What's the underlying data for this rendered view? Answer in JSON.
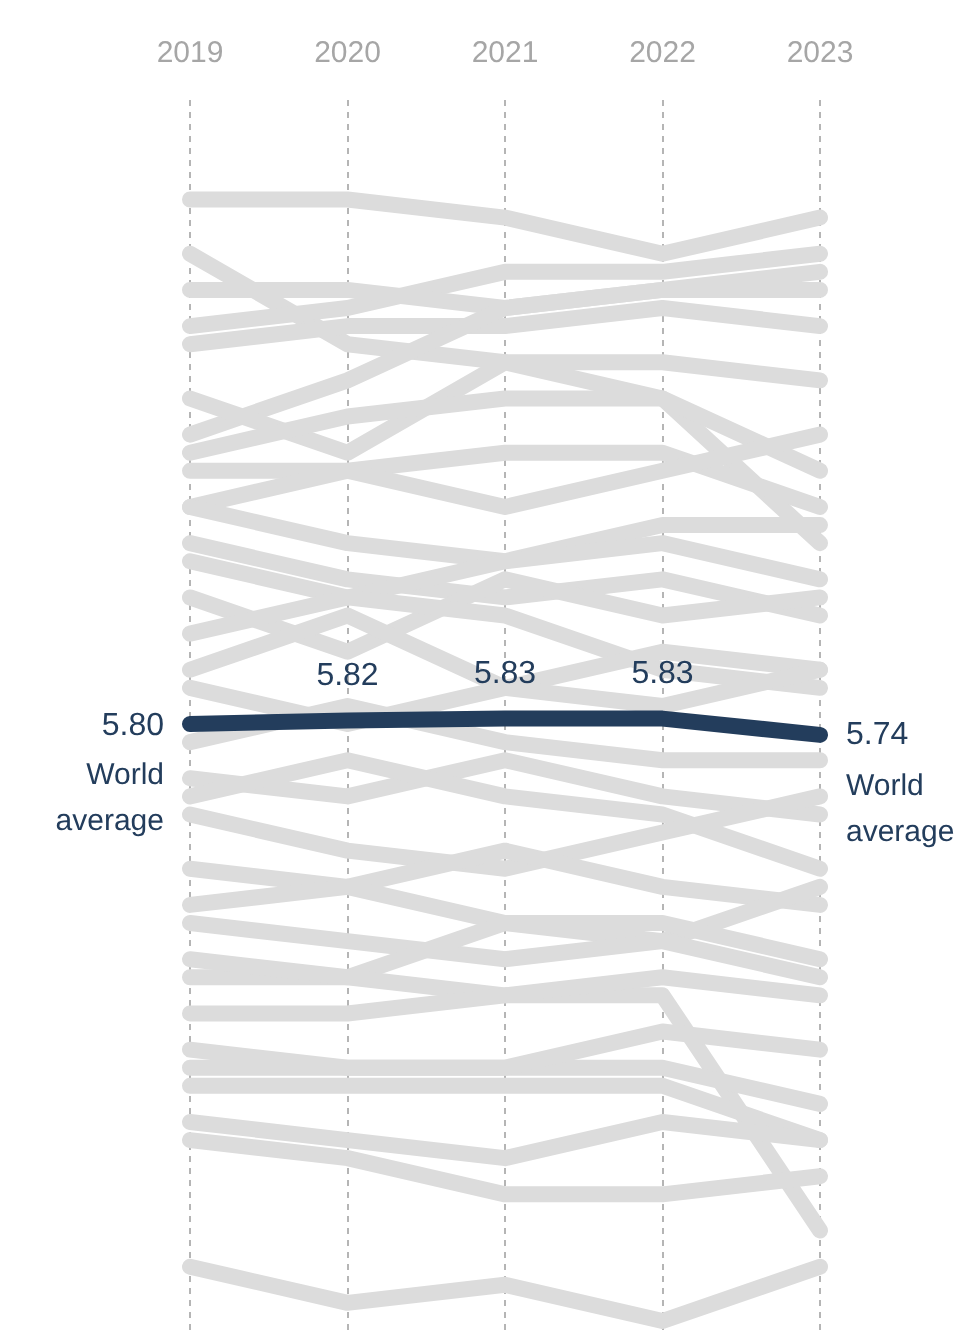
{
  "chart_data": {
    "type": "line",
    "categories": [
      "2019",
      "2020",
      "2021",
      "2022",
      "2023"
    ],
    "ylim": [
      2.45,
      9.25
    ],
    "tick_labels": "x",
    "grid": "x",
    "line_style": "solid",
    "series": [
      {
        "color": "#dcdcdc",
        "values": [
          8.7,
          8.7,
          8.6,
          8.4,
          8.6
        ]
      },
      {
        "color": "#dcdcdc",
        "values": [
          8.4,
          7.9,
          7.8,
          7.6,
          6.8
        ]
      },
      {
        "color": "#dcdcdc",
        "values": [
          8.0,
          8.1,
          8.3,
          8.3,
          8.4
        ]
      },
      {
        "color": "#dcdcdc",
        "values": [
          8.2,
          8.2,
          8.1,
          8.2,
          8.3
        ]
      },
      {
        "color": "#dcdcdc",
        "values": [
          7.9,
          8.0,
          8.0,
          8.1,
          8.0
        ]
      },
      {
        "color": "#dcdcdc",
        "values": [
          7.4,
          7.7,
          8.1,
          8.2,
          8.2
        ]
      },
      {
        "color": "#dcdcdc",
        "values": [
          7.6,
          7.3,
          7.8,
          7.8,
          7.7
        ]
      },
      {
        "color": "#dcdcdc",
        "values": [
          7.3,
          7.5,
          7.6,
          7.6,
          7.2
        ]
      },
      {
        "color": "#dcdcdc",
        "values": [
          7.2,
          7.2,
          7.3,
          7.3,
          7.0
        ]
      },
      {
        "color": "#dcdcdc",
        "values": [
          7.0,
          7.2,
          7.0,
          7.2,
          7.4
        ]
      },
      {
        "color": "#dcdcdc",
        "values": [
          7.0,
          6.8,
          6.7,
          6.9,
          6.9
        ]
      },
      {
        "color": "#dcdcdc",
        "values": [
          6.8,
          6.6,
          6.5,
          6.6,
          6.4
        ]
      },
      {
        "color": "#dcdcdc",
        "values": [
          6.7,
          6.5,
          6.7,
          6.8,
          6.6
        ]
      },
      {
        "color": "#dcdcdc",
        "values": [
          6.5,
          6.2,
          6.6,
          6.4,
          6.5
        ]
      },
      {
        "color": "#dcdcdc",
        "values": [
          6.3,
          6.5,
          6.4,
          6.1,
          6.0
        ]
      },
      {
        "color": "#dcdcdc",
        "values": [
          6.1,
          6.4,
          6.0,
          6.2,
          6.1
        ]
      },
      {
        "color": "#dcdcdc",
        "values": [
          6.0,
          5.8,
          6.0,
          5.9,
          6.1
        ]
      },
      {
        "color": "#dcdcdc",
        "values": [
          5.7,
          5.9,
          5.7,
          5.6,
          5.6
        ]
      },
      {
        "color": "#dcdcdc",
        "values": [
          5.5,
          5.4,
          5.6,
          5.4,
          5.3
        ]
      },
      {
        "color": "#dcdcdc",
        "values": [
          5.4,
          5.6,
          5.4,
          5.3,
          5.0
        ]
      },
      {
        "color": "#dcdcdc",
        "values": [
          5.3,
          5.1,
          5.0,
          5.2,
          5.4
        ]
      },
      {
        "color": "#dcdcdc",
        "values": [
          5.0,
          4.9,
          5.1,
          4.9,
          4.8
        ]
      },
      {
        "color": "#dcdcdc",
        "values": [
          4.8,
          4.9,
          4.7,
          4.6,
          4.9
        ]
      },
      {
        "color": "#dcdcdc",
        "values": [
          4.7,
          4.6,
          4.5,
          4.6,
          4.4
        ]
      },
      {
        "color": "#dcdcdc",
        "values": [
          4.4,
          4.4,
          4.7,
          4.7,
          4.5
        ]
      },
      {
        "color": "#dcdcdc",
        "values": [
          4.5,
          4.4,
          4.3,
          4.3,
          3.0
        ]
      },
      {
        "color": "#dcdcdc",
        "values": [
          4.2,
          4.2,
          4.3,
          4.4,
          4.3
        ]
      },
      {
        "color": "#dcdcdc",
        "values": [
          4.0,
          3.9,
          3.9,
          3.9,
          3.7
        ]
      },
      {
        "color": "#dcdcdc",
        "values": [
          3.9,
          3.9,
          3.9,
          4.1,
          4.0
        ]
      },
      {
        "color": "#dcdcdc",
        "values": [
          3.8,
          3.8,
          3.8,
          3.8,
          3.5
        ]
      },
      {
        "color": "#dcdcdc",
        "values": [
          3.6,
          3.5,
          3.4,
          3.6,
          3.5
        ]
      },
      {
        "color": "#dcdcdc",
        "values": [
          3.5,
          3.4,
          3.2,
          3.2,
          3.3
        ]
      },
      {
        "color": "#dcdcdc",
        "values": [
          2.8,
          2.6,
          2.7,
          2.5,
          2.8
        ]
      },
      {
        "color": "#233d5c",
        "values": [
          5.8,
          5.82,
          5.83,
          5.83,
          5.74
        ],
        "value_labels": [
          "5.80",
          "5.82",
          "5.83",
          "5.83",
          "5.74"
        ]
      }
    ],
    "annotations": [
      {
        "text": "World average",
        "x": "2019",
        "y": 5.8
      },
      {
        "text": "World average",
        "x": "2023",
        "y": 5.74
      }
    ]
  }
}
